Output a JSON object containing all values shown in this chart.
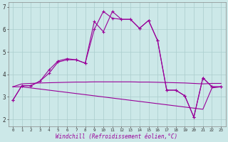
{
  "xlabel": "Windchill (Refroidissement éolien,°C)",
  "background_color": "#cce8e8",
  "grid_color": "#aacccc",
  "line_color": "#990099",
  "xlim": [
    -0.5,
    23.5
  ],
  "ylim": [
    1.7,
    7.2
  ],
  "yticks": [
    2,
    3,
    4,
    5,
    6,
    7
  ],
  "xticks": [
    0,
    1,
    2,
    3,
    4,
    5,
    6,
    7,
    8,
    9,
    10,
    11,
    12,
    13,
    14,
    15,
    16,
    17,
    18,
    19,
    20,
    21,
    22,
    23
  ],
  "series1_x": [
    0,
    1,
    2,
    3,
    4,
    5,
    6,
    7,
    8,
    9,
    10,
    11,
    12,
    13,
    14,
    15,
    16,
    17,
    18,
    19,
    20,
    21,
    22,
    23
  ],
  "series1_y": [
    2.85,
    3.5,
    3.5,
    3.7,
    4.2,
    4.6,
    4.7,
    4.65,
    4.5,
    6.35,
    5.9,
    6.8,
    6.45,
    6.45,
    6.05,
    6.4,
    5.5,
    3.3,
    3.3,
    3.05,
    2.1,
    3.85,
    3.45,
    3.45
  ],
  "series2_x": [
    0,
    1,
    2,
    3,
    4,
    5,
    6,
    7,
    8,
    9,
    10,
    11,
    12,
    13,
    14,
    15,
    16,
    17,
    18,
    19,
    20,
    21,
    22,
    23
  ],
  "series2_y": [
    2.85,
    3.5,
    3.5,
    3.7,
    4.05,
    4.55,
    4.65,
    4.65,
    4.5,
    6.0,
    6.8,
    6.5,
    6.45,
    6.45,
    6.05,
    6.4,
    5.5,
    3.3,
    3.3,
    3.05,
    2.1,
    3.85,
    3.45,
    3.45
  ],
  "series3_x": [
    0,
    1,
    23
  ],
  "series3_y": [
    3.45,
    3.6,
    3.6
  ],
  "series3_full_x": [
    0,
    1,
    2,
    3,
    4,
    5,
    6,
    7,
    8,
    9,
    10,
    11,
    12,
    13,
    14,
    15,
    16,
    17,
    18,
    19,
    20,
    21,
    22,
    23
  ],
  "series3_full_y": [
    3.45,
    3.58,
    3.6,
    3.62,
    3.63,
    3.64,
    3.65,
    3.66,
    3.66,
    3.67,
    3.67,
    3.67,
    3.67,
    3.67,
    3.66,
    3.66,
    3.65,
    3.64,
    3.63,
    3.62,
    3.6,
    3.58,
    3.6,
    3.6
  ],
  "series4_full_x": [
    0,
    1,
    2,
    3,
    4,
    5,
    6,
    7,
    8,
    9,
    10,
    11,
    12,
    13,
    14,
    15,
    16,
    17,
    18,
    19,
    20,
    21,
    22,
    23
  ],
  "series4_full_y": [
    3.45,
    3.45,
    3.4,
    3.35,
    3.3,
    3.25,
    3.2,
    3.15,
    3.1,
    3.05,
    3.0,
    2.95,
    2.9,
    2.85,
    2.8,
    2.75,
    2.7,
    2.65,
    2.6,
    2.55,
    2.5,
    2.45,
    3.4,
    3.45
  ]
}
